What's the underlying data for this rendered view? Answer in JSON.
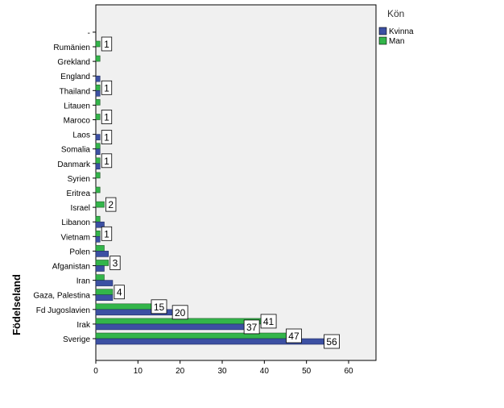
{
  "chart_data": {
    "type": "bar",
    "orientation": "horizontal",
    "title": "",
    "xlabel": "",
    "ylabel": "Födelseland",
    "legend_title": "Kön",
    "legend_position": "top-right",
    "xlim": [
      0,
      66
    ],
    "x_ticks": [
      0,
      10,
      20,
      30,
      40,
      50,
      60
    ],
    "categories": [
      "Sverige",
      "Irak",
      "Fd Jugoslavien",
      "Gaza, Palestina",
      "Iran",
      "Afganistan",
      "Polen",
      "Vietnam",
      "Libanon",
      "Israel",
      "Eritrea",
      "Syrien",
      "Danmark",
      "Somalia",
      "Laos",
      "Maroco",
      "Litauen",
      "Thailand",
      "England",
      "Grekland",
      "Rumänien",
      "-"
    ],
    "series": [
      {
        "name": "Kvinna",
        "color": "#3c50a3",
        "values": [
          56,
          37,
          20,
          4,
          4,
          2,
          3,
          1,
          2,
          0,
          0,
          0,
          1,
          1,
          1,
          0,
          0,
          1,
          1,
          0,
          0,
          0
        ]
      },
      {
        "name": "Man",
        "color": "#33b54a",
        "values": [
          47,
          41,
          15,
          4,
          2,
          3,
          2,
          1,
          1,
          2,
          1,
          1,
          1,
          1,
          0,
          1,
          1,
          1,
          0,
          1,
          1,
          0
        ]
      }
    ],
    "data_labels": [
      {
        "category": "Sverige",
        "series": "Kvinna",
        "text": "56"
      },
      {
        "category": "Sverige",
        "series": "Man",
        "text": "47"
      },
      {
        "category": "Irak",
        "series": "Kvinna",
        "text": "37"
      },
      {
        "category": "Irak",
        "series": "Man",
        "text": "41"
      },
      {
        "category": "Fd Jugoslavien",
        "series": "Kvinna",
        "text": "20"
      },
      {
        "category": "Fd Jugoslavien",
        "series": "Man",
        "text": "15"
      },
      {
        "category": "Gaza, Palestina",
        "series": "Man",
        "text": "4"
      },
      {
        "category": "Afganistan",
        "series": "Man",
        "text": "3"
      },
      {
        "category": "Vietnam",
        "series": "Man",
        "text": "1"
      },
      {
        "category": "Israel",
        "series": "Man",
        "text": "2"
      },
      {
        "category": "Danmark",
        "series": "Man",
        "text": "1"
      },
      {
        "category": "Laos",
        "series": "Kvinna",
        "text": "1"
      },
      {
        "category": "Maroco",
        "series": "Man",
        "text": "1"
      },
      {
        "category": "Thailand",
        "series": "Man",
        "text": "1"
      },
      {
        "category": "Rumänien",
        "series": "Man",
        "text": "1"
      }
    ],
    "colors": {
      "plot_background": "#f0f0f0",
      "label_box": "#ffffff"
    }
  }
}
